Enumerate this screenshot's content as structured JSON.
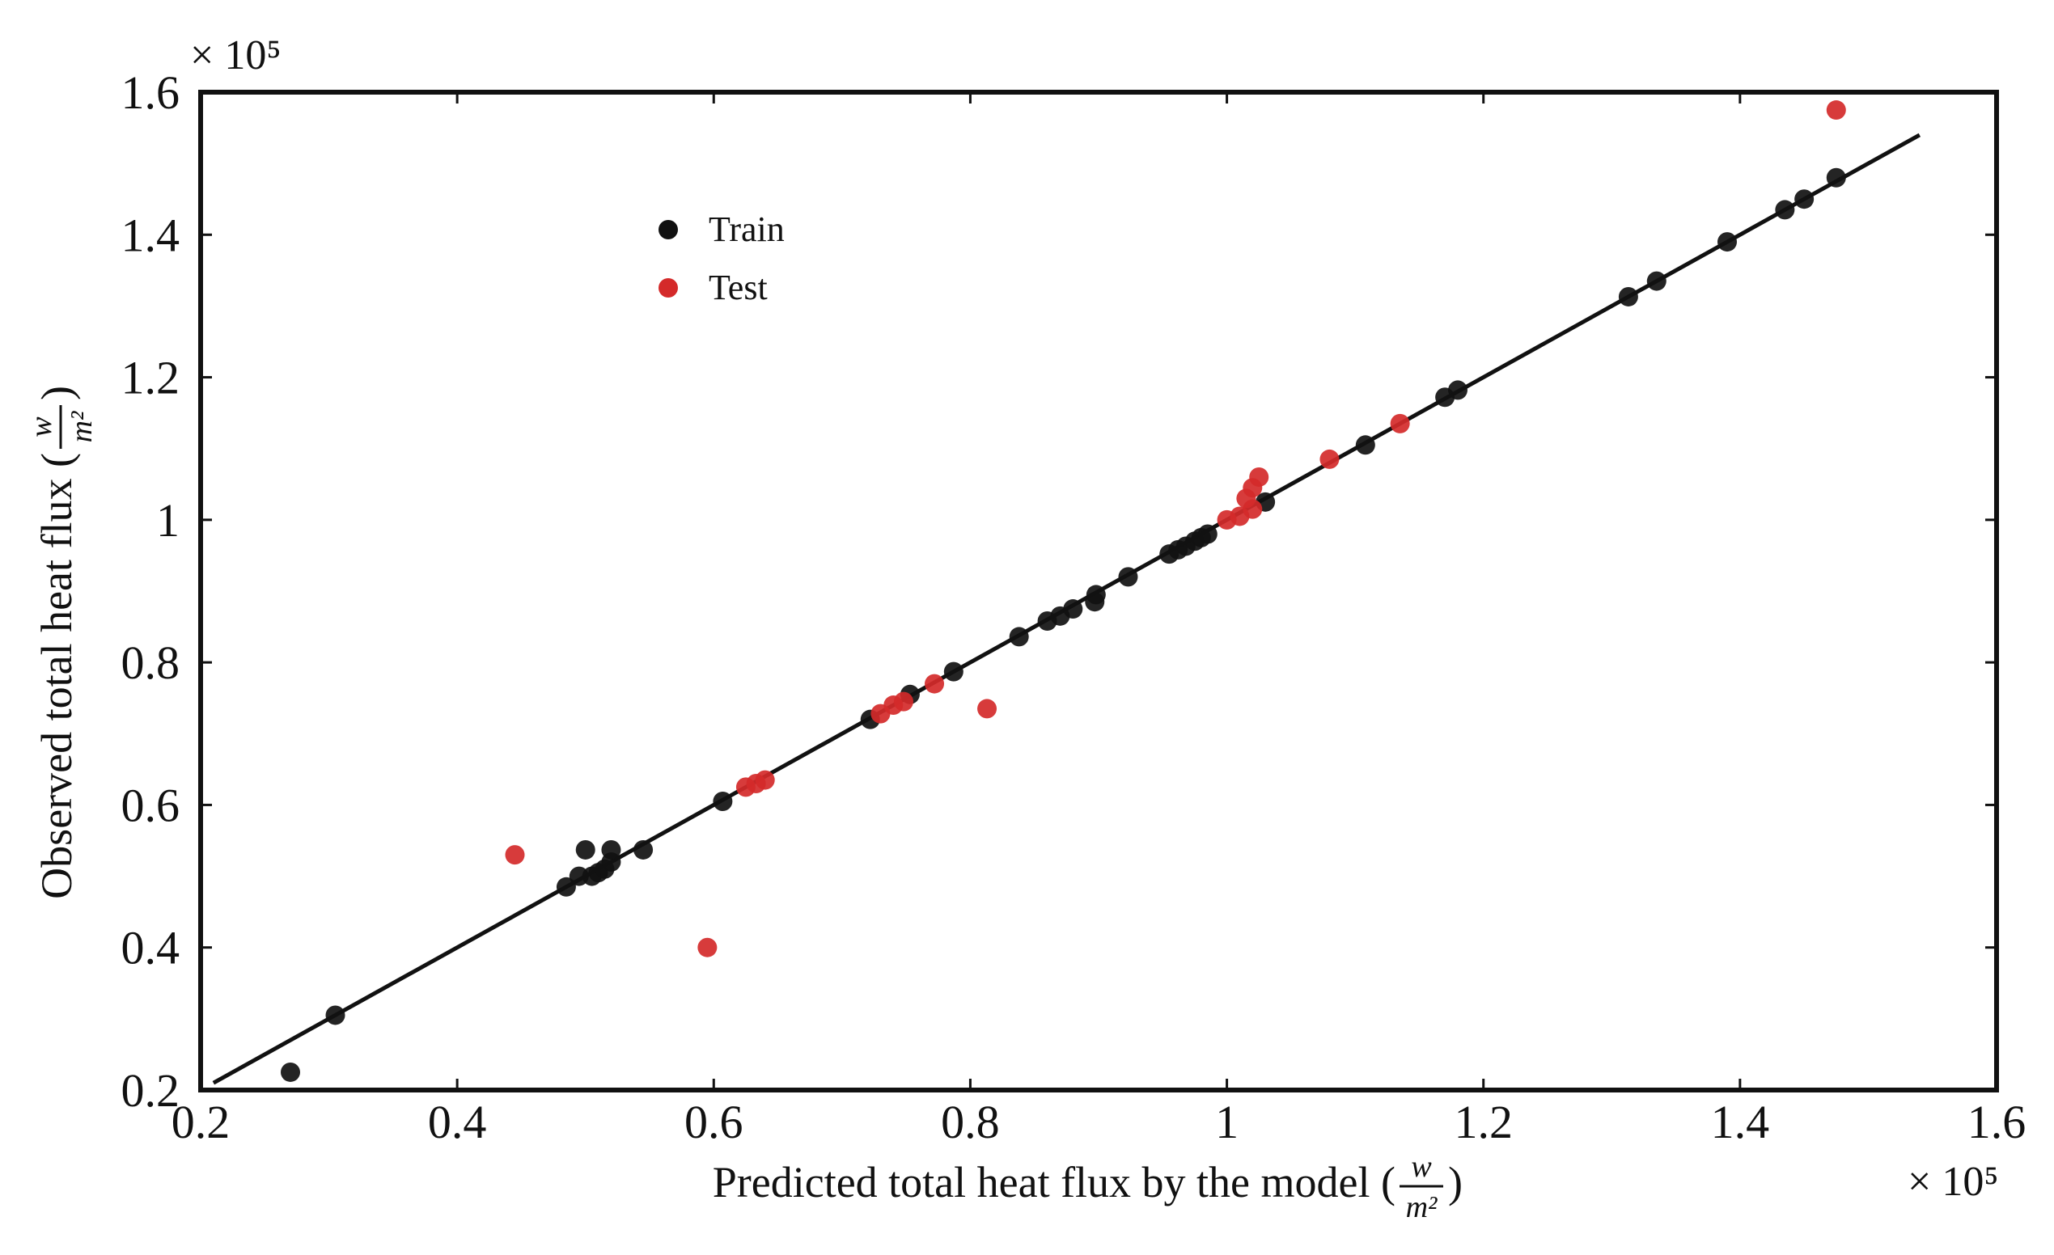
{
  "chart_data": {
    "type": "scatter",
    "title": "",
    "xlabel": {
      "prefix": "Predicted total heat flux by the model (",
      "frac_num": "w",
      "frac_den": "m²",
      "suffix": ")"
    },
    "ylabel": {
      "prefix": "Observed total heat flux (",
      "frac_num": "w",
      "frac_den": "m²",
      "suffix": ")"
    },
    "xlim": [
      0.2,
      1.6
    ],
    "ylim": [
      0.2,
      1.6
    ],
    "x_multiplier": "× 10⁵",
    "y_multiplier": "× 10⁵",
    "x_ticks": [
      "0.2",
      "0.4",
      "0.6",
      "0.8",
      "1",
      "1.2",
      "1.4",
      "1.6"
    ],
    "y_ticks": [
      "0.2",
      "0.4",
      "0.6",
      "0.8",
      "1",
      "1.2",
      "1.4",
      "1.6"
    ],
    "grid": false,
    "legend": {
      "position": "top-left"
    },
    "fit_line": {
      "x": [
        0.21,
        1.54
      ],
      "y": [
        0.21,
        1.54
      ]
    },
    "series": [
      {
        "name": "Train",
        "color": "#111111",
        "points": [
          [
            0.27,
            0.225
          ],
          [
            0.305,
            0.305
          ],
          [
            0.485,
            0.485
          ],
          [
            0.495,
            0.5
          ],
          [
            0.5,
            0.537
          ],
          [
            0.505,
            0.5
          ],
          [
            0.51,
            0.505
          ],
          [
            0.515,
            0.51
          ],
          [
            0.52,
            0.52
          ],
          [
            0.52,
            0.537
          ],
          [
            0.545,
            0.537
          ],
          [
            0.607,
            0.605
          ],
          [
            0.722,
            0.72
          ],
          [
            0.753,
            0.755
          ],
          [
            0.787,
            0.787
          ],
          [
            0.838,
            0.836
          ],
          [
            0.86,
            0.858
          ],
          [
            0.87,
            0.865
          ],
          [
            0.88,
            0.875
          ],
          [
            0.897,
            0.885
          ],
          [
            0.898,
            0.895
          ],
          [
            0.923,
            0.92
          ],
          [
            0.955,
            0.952
          ],
          [
            0.962,
            0.958
          ],
          [
            0.968,
            0.963
          ],
          [
            0.975,
            0.97
          ],
          [
            0.98,
            0.975
          ],
          [
            0.985,
            0.98
          ],
          [
            1.03,
            1.025
          ],
          [
            1.108,
            1.105
          ],
          [
            1.17,
            1.172
          ],
          [
            1.18,
            1.182
          ],
          [
            1.313,
            1.313
          ],
          [
            1.335,
            1.335
          ],
          [
            1.39,
            1.39
          ],
          [
            1.435,
            1.435
          ],
          [
            1.45,
            1.45
          ],
          [
            1.475,
            1.48
          ]
        ]
      },
      {
        "name": "Test",
        "color": "#d42a2a",
        "points": [
          [
            0.445,
            0.53
          ],
          [
            0.595,
            0.4
          ],
          [
            0.625,
            0.625
          ],
          [
            0.633,
            0.63
          ],
          [
            0.64,
            0.635
          ],
          [
            0.73,
            0.728
          ],
          [
            0.74,
            0.74
          ],
          [
            0.748,
            0.745
          ],
          [
            0.772,
            0.77
          ],
          [
            0.813,
            0.735
          ],
          [
            1.0,
            1.0
          ],
          [
            1.01,
            1.005
          ],
          [
            1.015,
            1.03
          ],
          [
            1.02,
            1.045
          ],
          [
            1.025,
            1.06
          ],
          [
            1.02,
            1.015
          ],
          [
            1.08,
            1.085
          ],
          [
            1.135,
            1.135
          ],
          [
            1.475,
            1.575
          ]
        ]
      }
    ]
  }
}
